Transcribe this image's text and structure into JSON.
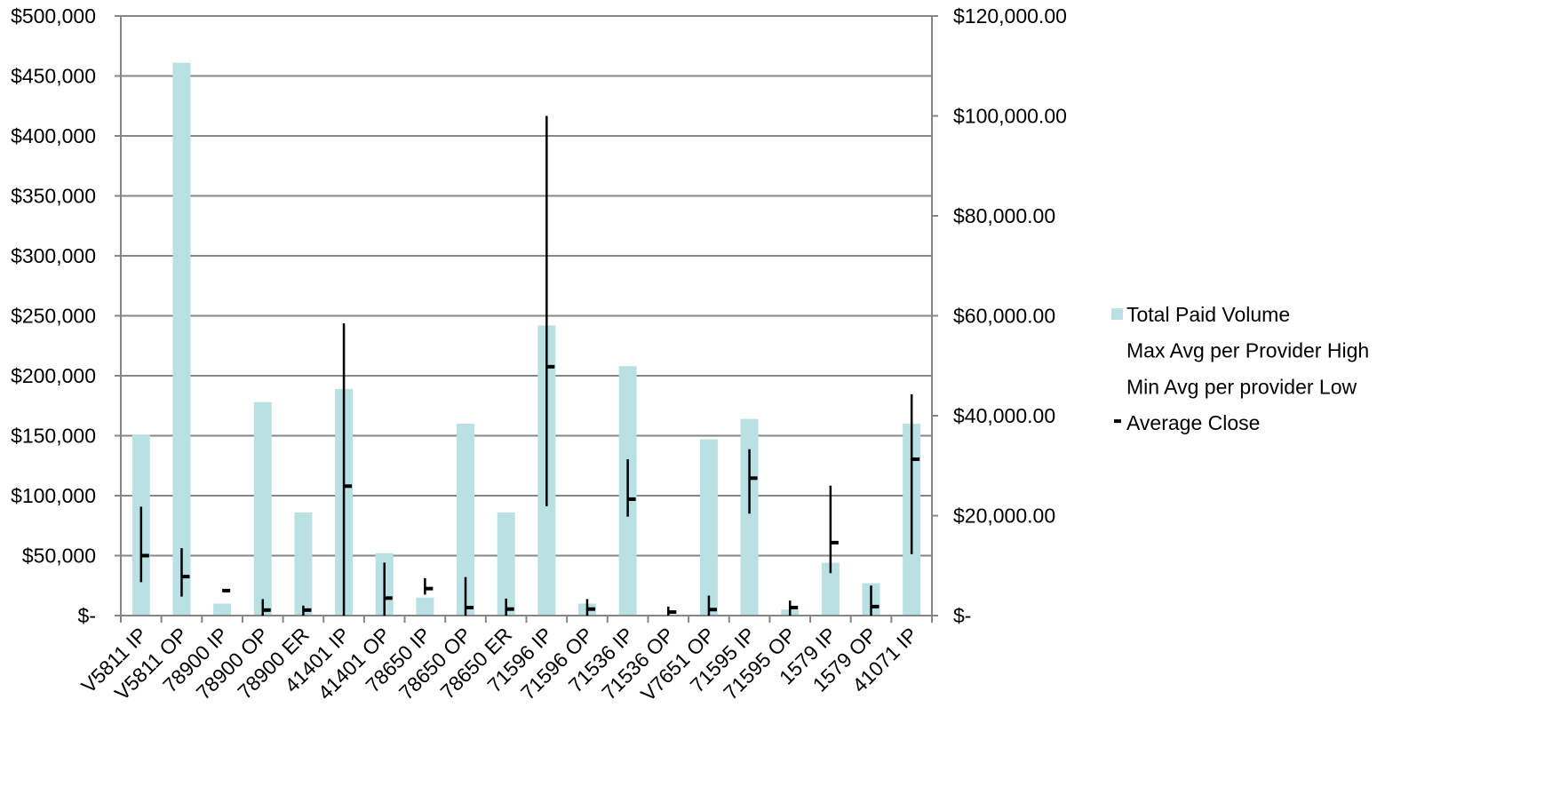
{
  "chart_data": {
    "type": "bar",
    "categories": [
      "V5811 IP",
      "V5811 OP",
      "78900 IP",
      "78900 OP",
      "78900 ER",
      "41401 IP",
      "41401 OP",
      "78650 IP",
      "78650 OP",
      "78650 ER",
      "71596 IP",
      "71596 OP",
      "71536 IP",
      "71536 OP",
      "V7651 OP",
      "71595 IP",
      "71595 OP",
      "1579 IP",
      "1579 OP",
      "41071 IP"
    ],
    "series": [
      {
        "name": "Total Paid Volume",
        "kind": "bar",
        "axis": "left",
        "color": "#b9e0e3",
        "values": [
          151000,
          461000,
          10000,
          178000,
          86000,
          189000,
          52000,
          15000,
          160000,
          86000,
          242000,
          10000,
          208000,
          0,
          147000,
          164000,
          5000,
          44000,
          27000,
          160000
        ]
      },
      {
        "name": "Max Avg per Provider High",
        "kind": "high",
        "axis": "right",
        "values": [
          21800,
          13500,
          null,
          3300,
          2000,
          58500,
          10600,
          7500,
          7700,
          3400,
          100000,
          3300,
          31300,
          1800,
          4000,
          33300,
          3000,
          26000,
          6000,
          44300
        ]
      },
      {
        "name": "Min Avg per provider Low",
        "kind": "low",
        "axis": "right",
        "values": [
          6700,
          3800,
          null,
          0,
          0,
          0,
          0,
          4200,
          0,
          0,
          21900,
          0,
          19800,
          0,
          0,
          20400,
          0,
          8500,
          0,
          12300
        ]
      },
      {
        "name": "Average Close",
        "kind": "close",
        "axis": "right",
        "color": "#000000",
        "values": [
          12000,
          7800,
          5000,
          1100,
          1100,
          25900,
          3500,
          5400,
          1600,
          1300,
          49800,
          1300,
          23300,
          700,
          1200,
          27500,
          1600,
          14600,
          1800,
          31300
        ]
      }
    ],
    "y_left": {
      "min": 0,
      "max": 500000,
      "step": 50000,
      "tick_labels": [
        "$-",
        "$50,000",
        "$100,000",
        "$150,000",
        "$200,000",
        "$250,000",
        "$300,000",
        "$350,000",
        "$400,000",
        "$450,000",
        "$500,000"
      ]
    },
    "y_right": {
      "min": 0,
      "max": 120000,
      "step": 20000,
      "tick_labels": [
        "$-",
        "$20,000.00",
        "$40,000.00",
        "$60,000.00",
        "$80,000.00",
        "$100,000.00",
        "$120,000.00"
      ]
    },
    "grid": true,
    "legend_position": "right",
    "axis_color": "#868686",
    "grid_color": "#868686"
  }
}
